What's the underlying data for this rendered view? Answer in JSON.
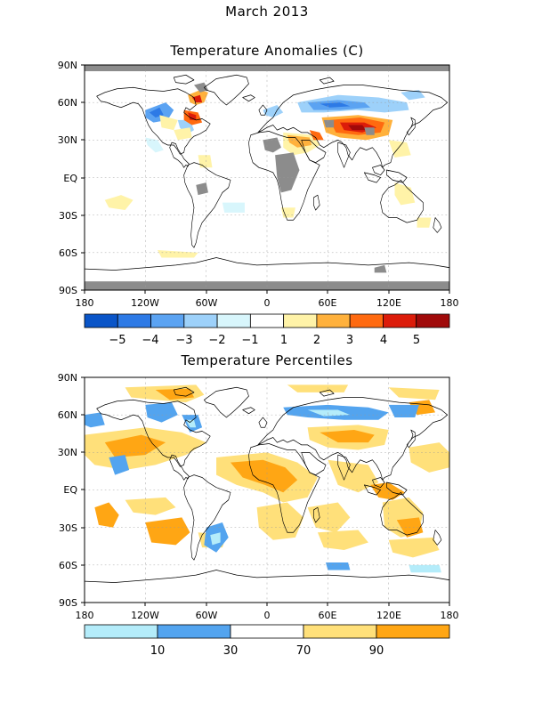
{
  "header": {
    "date": "March 2013",
    "anomaly_title": "Temperature Anomalies (C)",
    "percentile_title": "Temperature Percentiles"
  },
  "axes": {
    "lat_labels": [
      "90N",
      "60N",
      "30N",
      "EQ",
      "30S",
      "60S",
      "90S"
    ],
    "lon_labels": [
      "180",
      "120W",
      "60W",
      "0",
      "60E",
      "120E",
      "180"
    ]
  },
  "anomaly_legend": {
    "colors": [
      "#0a55c8",
      "#2d7ae6",
      "#5ba3f2",
      "#9dd1fa",
      "#d8f6fc",
      "#ffffff",
      "#fff3a8",
      "#ffb13c",
      "#ff6a10",
      "#dc1c0a",
      "#a00a0a"
    ],
    "labels": [
      "−5",
      "−4",
      "−3",
      "−2",
      "−1",
      "1",
      "2",
      "3",
      "4",
      "5"
    ]
  },
  "percentile_legend": {
    "colors": [
      "#b4ecfa",
      "#53a4ef",
      "#ffffff",
      "#ffe07a",
      "#ffa614"
    ],
    "labels": [
      "10",
      "30",
      "70",
      "90"
    ]
  },
  "colors": {
    "missing": "#8c8c8c",
    "coast": "#000000",
    "grid": "#9a9a9a"
  }
}
